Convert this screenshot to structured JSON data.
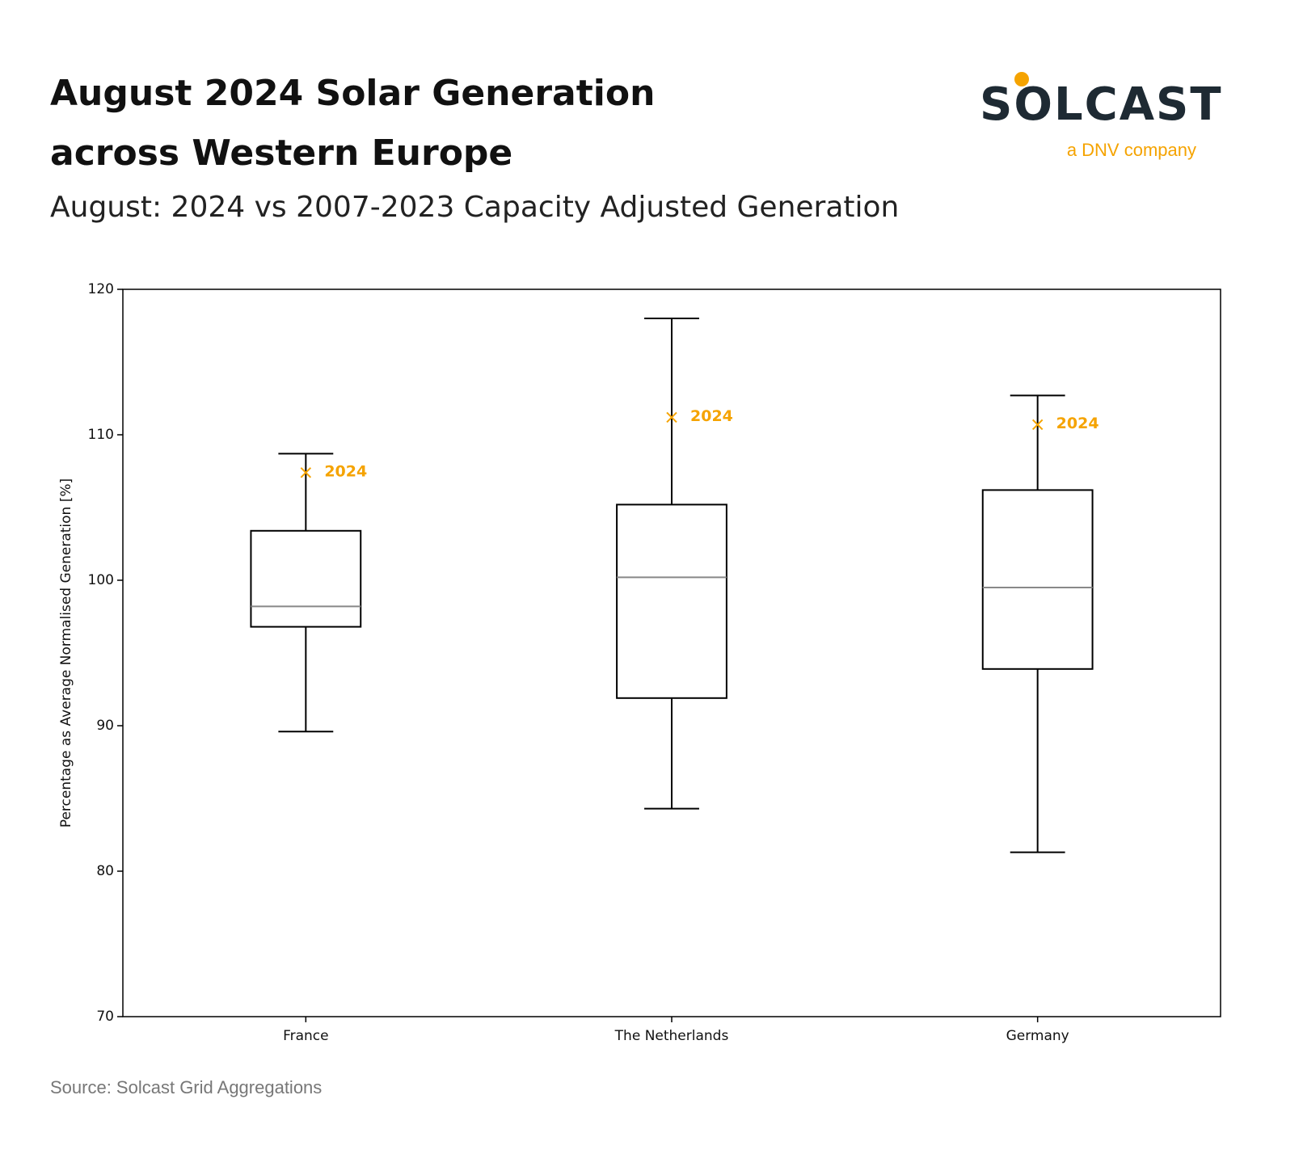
{
  "chart_data": {
    "type": "box",
    "title_lines": [
      "August 2024 Solar Generation",
      "across Western Europe"
    ],
    "subtitle": "August: 2024 vs 2007-2023 Capacity Adjusted Generation",
    "ylabel": "Percentage as Average Normalised Generation [%]",
    "categories": [
      "France",
      "The Netherlands",
      "Germany"
    ],
    "whisker_low": [
      89.6,
      84.3,
      81.3
    ],
    "q1": [
      96.8,
      91.9,
      93.9
    ],
    "median": [
      98.2,
      100.2,
      99.5
    ],
    "q3": [
      103.4,
      105.2,
      106.2
    ],
    "whisker_high": [
      108.7,
      118.0,
      112.7
    ],
    "highlight": {
      "name": "2024",
      "color": "#f5a300",
      "values": [
        107.4,
        111.2,
        110.7
      ]
    },
    "box_color": "#000000",
    "median_color": "#888888",
    "ylim": [
      70,
      120
    ],
    "yticks": [
      70,
      80,
      90,
      100,
      110,
      120
    ],
    "logo": {
      "name": "SOLCAST",
      "tagline": "a DNV company"
    },
    "source": "Source: Solcast Grid Aggregations"
  }
}
